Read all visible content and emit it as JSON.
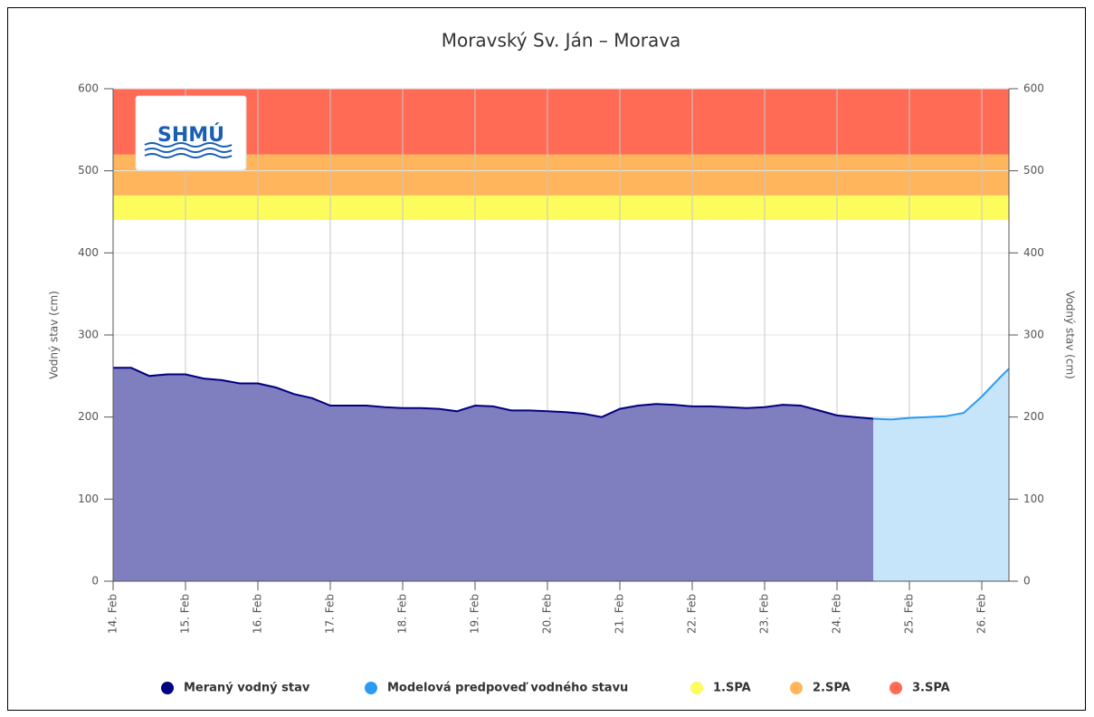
{
  "chart_data": {
    "type": "area",
    "title": "Moravský Sv. Ján – Morava",
    "logo": "SHMÚ",
    "ylabel": "Vodný stav (cm)",
    "y2label": "Vodný stav (cm)",
    "xlim": [
      14,
      26.375
    ],
    "xticks": [
      {
        "value": 14,
        "label": "14. Feb"
      },
      {
        "value": 15,
        "label": "15. Feb"
      },
      {
        "value": 16,
        "label": "16. Feb"
      },
      {
        "value": 17,
        "label": "17. Feb"
      },
      {
        "value": 18,
        "label": "18. Feb"
      },
      {
        "value": 19,
        "label": "19. Feb"
      },
      {
        "value": 20,
        "label": "20. Feb"
      },
      {
        "value": 21,
        "label": "21. Feb"
      },
      {
        "value": 22,
        "label": "22. Feb"
      },
      {
        "value": 23,
        "label": "23. Feb"
      },
      {
        "value": 24,
        "label": "24. Feb"
      },
      {
        "value": 25,
        "label": "25. Feb"
      },
      {
        "value": 26,
        "label": "26. Feb"
      }
    ],
    "ylim": [
      0,
      600
    ],
    "yticks": [
      0,
      100,
      200,
      300,
      400,
      500,
      600
    ],
    "y2lim": [
      0,
      600
    ],
    "y2ticks": [
      0,
      100,
      200,
      300,
      400,
      500,
      600
    ],
    "grid": true,
    "series": [
      {
        "name": "Meraný vodný stav",
        "color": "#000080",
        "fill": "#7f7fbf",
        "x": [
          14,
          14.25,
          14.5,
          14.75,
          15,
          15.25,
          15.5,
          15.75,
          16,
          16.25,
          16.5,
          16.75,
          17,
          17.25,
          17.5,
          17.75,
          18,
          18.25,
          18.5,
          18.75,
          19,
          19.25,
          19.5,
          19.75,
          20,
          20.25,
          20.5,
          20.75,
          21,
          21.25,
          21.5,
          21.75,
          22,
          22.25,
          22.5,
          22.75,
          23,
          23.25,
          23.5,
          23.75,
          24,
          24.25,
          24.5
        ],
        "values": [
          260,
          260,
          250,
          252,
          252,
          247,
          245,
          241,
          241,
          236,
          228,
          223,
          214,
          214,
          214,
          212,
          211,
          211,
          210,
          207,
          214,
          213,
          208,
          208,
          207,
          206,
          204,
          200,
          210,
          214,
          216,
          215,
          213,
          213,
          212,
          211,
          212,
          215,
          214,
          208,
          202,
          200,
          198
        ]
      },
      {
        "name": "Modelová predpoveď vodného stavu",
        "color": "#2b9af3",
        "fill": "#c6e5fb",
        "x": [
          24.5,
          24.75,
          25,
          25.25,
          25.5,
          25.75,
          26,
          26.25,
          26.375
        ],
        "values": [
          198,
          197,
          199,
          200,
          201,
          205,
          225,
          248,
          259
        ]
      }
    ],
    "plot_bands": [
      {
        "name": "1.SPA",
        "color": "#fcfc5c",
        "from": 440,
        "to": 470
      },
      {
        "name": "2.SPA",
        "color": "#ffb55c",
        "from": 470,
        "to": 520
      },
      {
        "name": "3.SPA",
        "color": "#ff6b55",
        "from": 520,
        "to": 600
      }
    ]
  }
}
